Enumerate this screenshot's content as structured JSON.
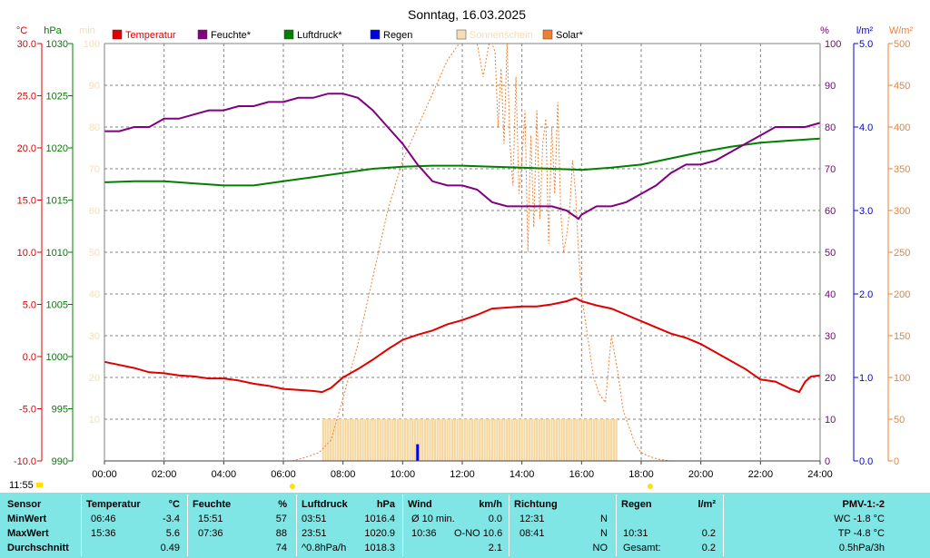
{
  "chart_data": {
    "type": "line",
    "title": "Sonntag, 16.03.2025",
    "legend": [
      {
        "label": "Temperatur",
        "color": "#e00000",
        "box": "#e00000"
      },
      {
        "label": "Feuchte*",
        "color": "#000000",
        "box": "#800080"
      },
      {
        "label": "Luftdruck*",
        "color": "#000000",
        "box": "#008000"
      },
      {
        "label": "Regen",
        "color": "#000000",
        "box": "#0000e0"
      },
      {
        "label": "Sonnenschein",
        "color": "#f5deb3",
        "box": "#f5deb3"
      },
      {
        "label": "Solar*",
        "color": "#000000",
        "box": "#f08030"
      }
    ],
    "units": {
      "temp": "°C",
      "press": "hPa",
      "sun": "min",
      "hum": "%",
      "rain": "l/m²",
      "solar": "W/m²"
    },
    "axes": {
      "temp": {
        "min": -10,
        "max": 30,
        "ticks": [
          "30.0",
          "25.0",
          "20.0",
          "15.0",
          "10.0",
          "5.0",
          "0.0",
          "-5.0",
          "-10.0"
        ],
        "color": "#e00000"
      },
      "press": {
        "min": 990,
        "max": 1030,
        "ticks": [
          "1030",
          "1025",
          "1020",
          "1015",
          "1010",
          "1005",
          "1000",
          "995",
          "990"
        ],
        "color": "#008000"
      },
      "sun": {
        "min": 0,
        "max": 100,
        "ticks": [
          "100",
          "90",
          "80",
          "70",
          "60",
          "50",
          "40",
          "30",
          "20",
          "10"
        ],
        "color": "#f5deb3"
      },
      "hum": {
        "min": 0,
        "max": 100,
        "ticks": [
          "100",
          "90",
          "80",
          "70",
          "60",
          "50",
          "40",
          "30",
          "20",
          "10",
          "0"
        ],
        "color": "#800080"
      },
      "rain": {
        "min": 0,
        "max": 5,
        "ticks": [
          "5.0",
          "4.0",
          "3.0",
          "2.0",
          "1.0",
          "0.0"
        ],
        "color": "#0000e0"
      },
      "solar": {
        "min": 0,
        "max": 500,
        "ticks": [
          "500",
          "450",
          "400",
          "350",
          "300",
          "250",
          "200",
          "150",
          "100",
          "50",
          "0"
        ],
        "color": "#f08030"
      }
    },
    "x_ticks": [
      "00:00",
      "02:00",
      "04:00",
      "06:00",
      "08:00",
      "10:00",
      "12:00",
      "14:00",
      "16:00",
      "18:00",
      "20:00",
      "22:00",
      "24:00"
    ],
    "x_range_hours": [
      0,
      24
    ],
    "time_marker": "11:55",
    "series": [
      {
        "name": "Temperatur",
        "axis": "temp",
        "color": "#e00000",
        "x": [
          0,
          0.5,
          1,
          1.5,
          2,
          2.5,
          3,
          3.5,
          4,
          4.5,
          5,
          5.5,
          6,
          6.5,
          7,
          7.3,
          7.6,
          8,
          8.5,
          9,
          9.5,
          10,
          10.5,
          11,
          11.5,
          12,
          12.5,
          13,
          13.5,
          14,
          14.5,
          15,
          15.5,
          15.8,
          16,
          16.5,
          17,
          17.5,
          18,
          18.5,
          19,
          19.5,
          20,
          20.5,
          21,
          21.5,
          22,
          22.5,
          23,
          23.3,
          23.5,
          23.7,
          24
        ],
        "y": [
          -0.5,
          -0.8,
          -1.1,
          -1.5,
          -1.6,
          -1.8,
          -1.9,
          -2.1,
          -2.1,
          -2.3,
          -2.6,
          -2.8,
          -3.1,
          -3.2,
          -3.3,
          -3.4,
          -3.0,
          -2.0,
          -1.2,
          -0.3,
          0.7,
          1.6,
          2.1,
          2.5,
          3.1,
          3.5,
          4.0,
          4.6,
          4.7,
          4.8,
          4.8,
          5.0,
          5.3,
          5.6,
          5.3,
          4.9,
          4.6,
          4.0,
          3.4,
          2.8,
          2.2,
          1.8,
          1.2,
          0.4,
          -0.4,
          -1.2,
          -2.2,
          -2.4,
          -3.1,
          -3.4,
          -2.4,
          -1.9,
          -1.8
        ]
      },
      {
        "name": "Feuchte*",
        "axis": "hum",
        "color": "#800080",
        "x": [
          0,
          0.5,
          1,
          1.5,
          2,
          2.5,
          3,
          3.5,
          4,
          4.5,
          5,
          5.5,
          6,
          6.5,
          7,
          7.5,
          8,
          8.5,
          9,
          9.5,
          10,
          10.5,
          11,
          11.5,
          12,
          12.5,
          13,
          13.5,
          14,
          14.5,
          15,
          15.5,
          15.9,
          16,
          16.5,
          17,
          17.5,
          18,
          18.5,
          19,
          19.5,
          20,
          20.5,
          21,
          21.5,
          22,
          22.5,
          23,
          23.5,
          24
        ],
        "y": [
          79,
          79,
          80,
          80,
          82,
          82,
          83,
          84,
          84,
          85,
          85,
          86,
          86,
          87,
          87,
          88,
          88,
          87,
          84,
          80,
          76,
          71,
          67,
          66,
          66,
          65,
          62,
          61,
          61,
          61,
          61,
          60,
          58,
          59,
          61,
          61,
          62,
          64,
          66,
          69,
          71,
          71,
          72,
          74,
          76,
          78,
          80,
          80,
          80,
          81
        ]
      },
      {
        "name": "Luftdruck*",
        "axis": "press",
        "color": "#008000",
        "x": [
          0,
          1,
          2,
          3,
          4,
          5,
          6,
          7,
          8,
          9,
          10,
          11,
          12,
          13,
          14,
          15,
          16,
          17,
          18,
          19,
          20,
          21,
          22,
          23,
          24
        ],
        "y": [
          1016.7,
          1016.8,
          1016.8,
          1016.6,
          1016.4,
          1016.4,
          1016.8,
          1017.2,
          1017.6,
          1018.0,
          1018.2,
          1018.3,
          1018.3,
          1018.2,
          1018.1,
          1018.0,
          1017.9,
          1018.1,
          1018.4,
          1019.0,
          1019.6,
          1020.1,
          1020.5,
          1020.7,
          1020.9
        ]
      },
      {
        "name": "Solar*",
        "axis": "solar",
        "color": "#f08030",
        "x": [
          6.3,
          6.8,
          7.2,
          7.6,
          8,
          8.5,
          9,
          9.5,
          10,
          10.5,
          11,
          11.5,
          11.9,
          12.5,
          12.7,
          12.9,
          13,
          13.1,
          13.2,
          13.3,
          13.4,
          13.5,
          13.6,
          13.7,
          13.8,
          13.9,
          14,
          14.1,
          14.2,
          14.3,
          14.4,
          14.5,
          14.6,
          14.7,
          14.8,
          14.9,
          15,
          15.1,
          15.2,
          15.3,
          15.4,
          15.5,
          15.6,
          15.7,
          15.8,
          15.9,
          16,
          16.2,
          16.4,
          16.6,
          16.8,
          17,
          17.2,
          17.4,
          17.6,
          17.8,
          18,
          18.3,
          18.6,
          19,
          19.3
        ],
        "y": [
          0,
          5,
          10,
          25,
          75,
          140,
          220,
          300,
          360,
          400,
          440,
          480,
          500,
          500,
          460,
          510,
          500,
          490,
          400,
          470,
          380,
          500,
          380,
          330,
          460,
          320,
          360,
          420,
          250,
          390,
          280,
          420,
          290,
          380,
          410,
          260,
          400,
          320,
          430,
          300,
          250,
          270,
          300,
          360,
          320,
          250,
          200,
          150,
          100,
          80,
          70,
          150,
          110,
          60,
          40,
          20,
          10,
          5,
          2,
          0,
          0
        ]
      }
    ],
    "sunshine_bars": {
      "start": 7.3,
      "end": 17.2,
      "value_min": 10
    },
    "rain_bars": [
      {
        "x": 10.5,
        "value": 0.2
      }
    ]
  },
  "stats": {
    "headers": {
      "sensor": "Sensor",
      "temp": "Temperatur",
      "temp_unit": "°C",
      "hum": "Feuchte",
      "hum_unit": "%",
      "press": "Luftdruck",
      "press_unit": "hPa",
      "wind": "Wind",
      "wind_unit": "km/h",
      "dir": "Richtung",
      "rain": "Regen",
      "rain_unit": "l/m²",
      "pmv": "PMV-1:-2"
    },
    "rows": [
      {
        "label": "MinWert",
        "temp_time": "06:46",
        "temp_val": "-3.4",
        "hum_time": "15:51",
        "hum_val": "57",
        "press_time": "03:51",
        "press_val": "1016.4",
        "wind_label": "Ø 10 min.",
        "wind_val": "0.0",
        "dir_time": "12:31",
        "dir_val": "N",
        "rain_time": "",
        "rain_val": "",
        "pmv": "WC -1.8 °C"
      },
      {
        "label": "MaxWert",
        "temp_time": "15:36",
        "temp_val": "5.6",
        "hum_time": "07:36",
        "hum_val": "88",
        "press_time": "23:51",
        "press_val": "1020.9",
        "wind_label": "10:36",
        "wind_mid": "O-NO 10.6",
        "wind_val": "",
        "dir_time": "08:41",
        "dir_val": "N",
        "rain_time": "10:31",
        "rain_val": "0.2",
        "pmv": "TP -4.8 °C"
      },
      {
        "label": "Durchschnitt",
        "temp_time": "",
        "temp_val": "0.49",
        "hum_time": "",
        "hum_val": "74",
        "press_time": "^0.8hPa/h",
        "press_val": "1018.3",
        "wind_label": "",
        "wind_val": "2.1",
        "dir_time": "",
        "dir_val": "NO",
        "rain_time": "Gesamt:",
        "rain_val": "0.2",
        "pmv": "0.5hPa/3h"
      }
    ]
  }
}
